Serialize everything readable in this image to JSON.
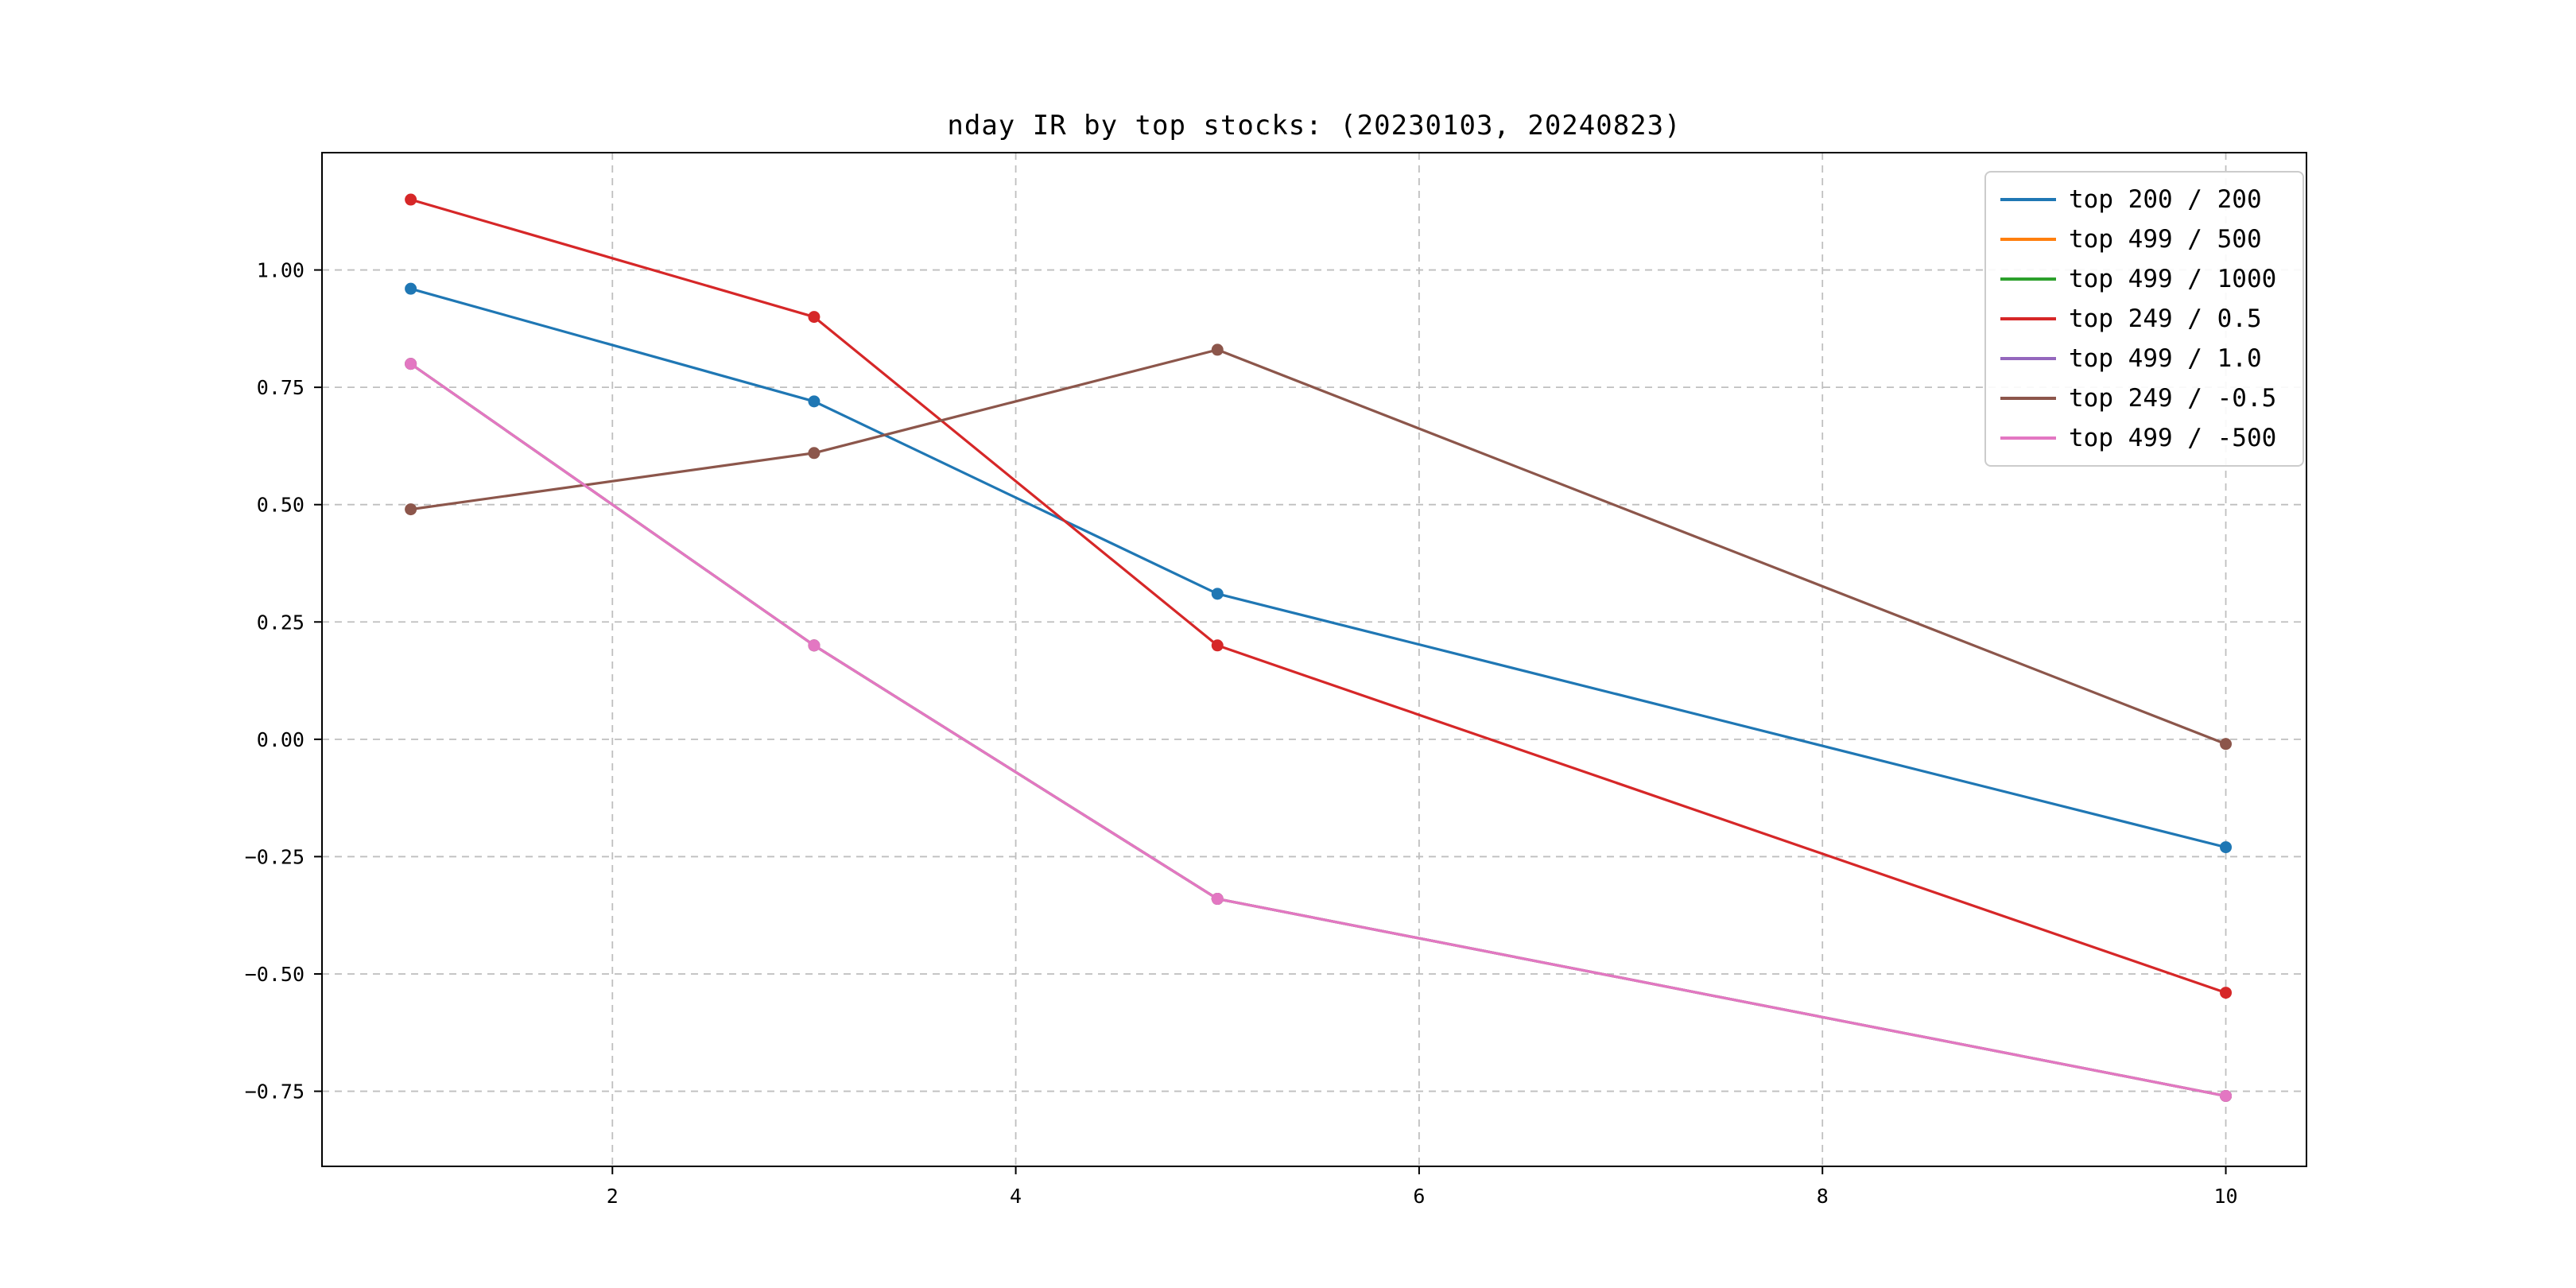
{
  "chart_data": {
    "type": "line",
    "title": "nday IR by top stocks: (20230103, 20240823)",
    "x": [
      1,
      3,
      5,
      10
    ],
    "series": [
      {
        "name": "top 200 / 200",
        "color": "#1f77b4",
        "values": [
          0.96,
          0.72,
          0.31,
          -0.23
        ]
      },
      {
        "name": "top 499 / 500",
        "color": "#ff7f0e",
        "values": [
          0.8,
          0.2,
          -0.34,
          -0.76
        ]
      },
      {
        "name": "top 499 / 1000",
        "color": "#2ca02c",
        "values": [
          0.8,
          0.2,
          -0.34,
          -0.76
        ]
      },
      {
        "name": "top 249 / 0.5",
        "color": "#d62728",
        "values": [
          1.15,
          0.9,
          0.2,
          -0.54
        ]
      },
      {
        "name": "top 499 / 1.0",
        "color": "#9467bd",
        "values": [
          0.8,
          0.2,
          -0.34,
          -0.76
        ]
      },
      {
        "name": "top 249 / -0.5",
        "color": "#8c564b",
        "values": [
          0.49,
          0.61,
          0.83,
          -0.01
        ]
      },
      {
        "name": "top 499 / -500",
        "color": "#e377c2",
        "values": [
          0.8,
          0.2,
          -0.34,
          -0.76
        ]
      }
    ],
    "xticks": [
      2,
      4,
      6,
      8,
      10
    ],
    "xtick_labels": [
      "2",
      "4",
      "6",
      "8",
      "10"
    ],
    "yticks": [
      -0.75,
      -0.5,
      -0.25,
      0.0,
      0.25,
      0.5,
      0.75,
      1.0
    ],
    "ytick_labels": [
      "−0.75",
      "−0.50",
      "−0.25",
      "0.00",
      "0.25",
      "0.50",
      "0.75",
      "1.00"
    ],
    "xlim": [
      0.56,
      10.4
    ],
    "ylim": [
      -0.91,
      1.25
    ],
    "grid": true,
    "legend_position": "upper right"
  }
}
